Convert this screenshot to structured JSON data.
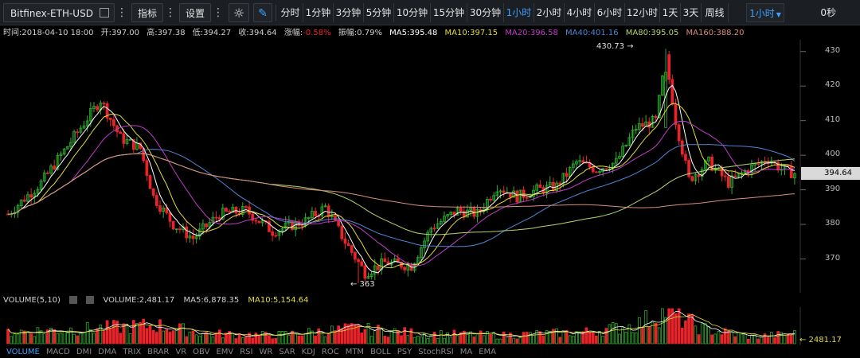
{
  "toolbar": {
    "symbol": "Bitfinex-ETH-USD",
    "indicator_label": "指标",
    "settings_label": "设置",
    "periods": [
      "分时",
      "1分钟",
      "3分钟",
      "5分钟",
      "10分钟",
      "15分钟",
      "30分钟",
      "1小时",
      "2小时",
      "4小时",
      "6小时",
      "12小时",
      "1天",
      "3天",
      "周线"
    ],
    "active_period": "1小时",
    "period_select": "1小时",
    "countdown": "0秒"
  },
  "info_bar": {
    "time": "时间:2018-04-10 18:00",
    "open": "开:397.00",
    "high": "高:397.38",
    "low": "低:394.27",
    "close": "收:394.64",
    "change_label": "涨幅:",
    "change_value": "-0.58%",
    "amplitude": "振幅:0.79%",
    "ma5": "MA5:395.48",
    "ma10": "MA10:397.15",
    "ma20": "MA20:396.58",
    "ma40": "MA40:401.16",
    "ma80": "MA80:395.05",
    "ma160": "MA160:388.20"
  },
  "colors": {
    "up": "#2fb02f",
    "down": "#e8242a",
    "ma5": "#ffffff",
    "ma10": "#e3dd3b",
    "ma20": "#c13cc8",
    "ma40": "#4f86d6",
    "ma80": "#b7d66b",
    "ma160": "#d98e7a",
    "active_tab": "#3ea0ff"
  },
  "price_axis": {
    "ticks": [
      430,
      420,
      410,
      400,
      390,
      380,
      370
    ],
    "min": 363,
    "max": 432
  },
  "annotations": {
    "high_label": "430.73 →",
    "low_label": "← 363",
    "current_price": "394.64"
  },
  "chart_data": {
    "type": "candlestick",
    "title": "",
    "ylim": [
      363,
      432
    ],
    "marked_high": 430.73,
    "marked_low": 363,
    "last_close": 394.64,
    "ohlc_control_points": [
      {
        "i": 0,
        "price": 383
      },
      {
        "i": 10,
        "price": 392
      },
      {
        "i": 22,
        "price": 408
      },
      {
        "i": 28,
        "price": 416
      },
      {
        "i": 34,
        "price": 405
      },
      {
        "i": 40,
        "price": 402
      },
      {
        "i": 44,
        "price": 388
      },
      {
        "i": 50,
        "price": 380
      },
      {
        "i": 56,
        "price": 376
      },
      {
        "i": 64,
        "price": 383
      },
      {
        "i": 72,
        "price": 384
      },
      {
        "i": 80,
        "price": 378
      },
      {
        "i": 90,
        "price": 381
      },
      {
        "i": 96,
        "price": 385
      },
      {
        "i": 102,
        "price": 375
      },
      {
        "i": 108,
        "price": 366
      },
      {
        "i": 114,
        "price": 369
      },
      {
        "i": 122,
        "price": 368
      },
      {
        "i": 128,
        "price": 379
      },
      {
        "i": 136,
        "price": 384
      },
      {
        "i": 142,
        "price": 383
      },
      {
        "i": 148,
        "price": 391
      },
      {
        "i": 154,
        "price": 388
      },
      {
        "i": 160,
        "price": 390
      },
      {
        "i": 166,
        "price": 391
      },
      {
        "i": 172,
        "price": 398
      },
      {
        "i": 178,
        "price": 396
      },
      {
        "i": 184,
        "price": 398
      },
      {
        "i": 190,
        "price": 408
      },
      {
        "i": 196,
        "price": 410
      },
      {
        "i": 199,
        "price": 428
      },
      {
        "i": 202,
        "price": 410
      },
      {
        "i": 206,
        "price": 393
      },
      {
        "i": 212,
        "price": 398
      },
      {
        "i": 218,
        "price": 392
      },
      {
        "i": 224,
        "price": 396
      },
      {
        "i": 230,
        "price": 399
      },
      {
        "i": 234,
        "price": 396
      },
      {
        "i": 238,
        "price": 394.64
      }
    ],
    "candle_count": 239
  },
  "volume": {
    "header": "VOLUME(5,10)",
    "volume_value": "VOLUME:2,481.17",
    "ma5": "MA5:6,878.35",
    "ma10": "MA10:5,154.64",
    "axis_label": "← 2481.17",
    "bars_profile": [
      {
        "i": 0,
        "v": 0.35
      },
      {
        "i": 25,
        "v": 0.45
      },
      {
        "i": 45,
        "v": 0.55
      },
      {
        "i": 60,
        "v": 0.3
      },
      {
        "i": 80,
        "v": 0.25
      },
      {
        "i": 105,
        "v": 0.45
      },
      {
        "i": 125,
        "v": 0.3
      },
      {
        "i": 150,
        "v": 0.25
      },
      {
        "i": 175,
        "v": 0.35
      },
      {
        "i": 190,
        "v": 0.55
      },
      {
        "i": 199,
        "v": 1.0
      },
      {
        "i": 210,
        "v": 0.45
      },
      {
        "i": 225,
        "v": 0.2
      },
      {
        "i": 238,
        "v": 0.3
      }
    ]
  },
  "indicator_tabs": [
    "VOLUME",
    "MACD",
    "DMI",
    "DMA",
    "TRIX",
    "BRAR",
    "VR",
    "OBV",
    "EMV",
    "RSI",
    "WR",
    "SAR",
    "KDJ",
    "ROC",
    "MTM",
    "BOLL",
    "PSY",
    "StochRSI",
    "MA",
    "EMA"
  ],
  "active_indicator": "VOLUME"
}
